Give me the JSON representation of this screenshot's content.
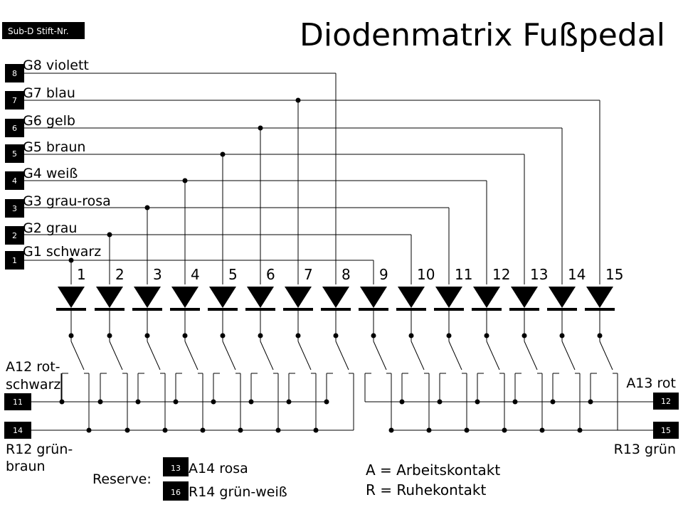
{
  "title": "Diodenmatrix Fußpedal",
  "header_badge": "Sub-D Stift-Nr.",
  "groups": [
    {
      "pin": "8",
      "label": "G8 violett"
    },
    {
      "pin": "7",
      "label": "G7 blau"
    },
    {
      "pin": "6",
      "label": "G6 gelb"
    },
    {
      "pin": "5",
      "label": "G5 braun"
    },
    {
      "pin": "4",
      "label": "G4 weiß"
    },
    {
      "pin": "3",
      "label": "G3 grau-rosa"
    },
    {
      "pin": "2",
      "label": "G2 grau"
    },
    {
      "pin": "1",
      "label": "G1 schwarz"
    }
  ],
  "diode_numbers": [
    "1",
    "2",
    "3",
    "4",
    "5",
    "6",
    "7",
    "8",
    "9",
    "10",
    "11",
    "12",
    "13",
    "14",
    "15"
  ],
  "left_bus": {
    "arbeit_label_1": "A12 rot-",
    "arbeit_label_2": "schwarz",
    "arbeit_pin": "11",
    "ruhe_pin": "14",
    "ruhe_label_1": "R12 grün-",
    "ruhe_label_2": "braun"
  },
  "right_bus": {
    "arbeit_label": "A13 rot",
    "arbeit_pin": "12",
    "ruhe_pin": "15",
    "ruhe_label": "R13 grün"
  },
  "reserve": {
    "label": "Reserve:",
    "items": [
      {
        "pin": "13",
        "label": "A14 rosa"
      },
      {
        "pin": "16",
        "label": "R14 grün-weiß"
      }
    ]
  },
  "legend": {
    "a": "A = Arbeitskontakt",
    "r": "R = Ruhekontakt"
  }
}
